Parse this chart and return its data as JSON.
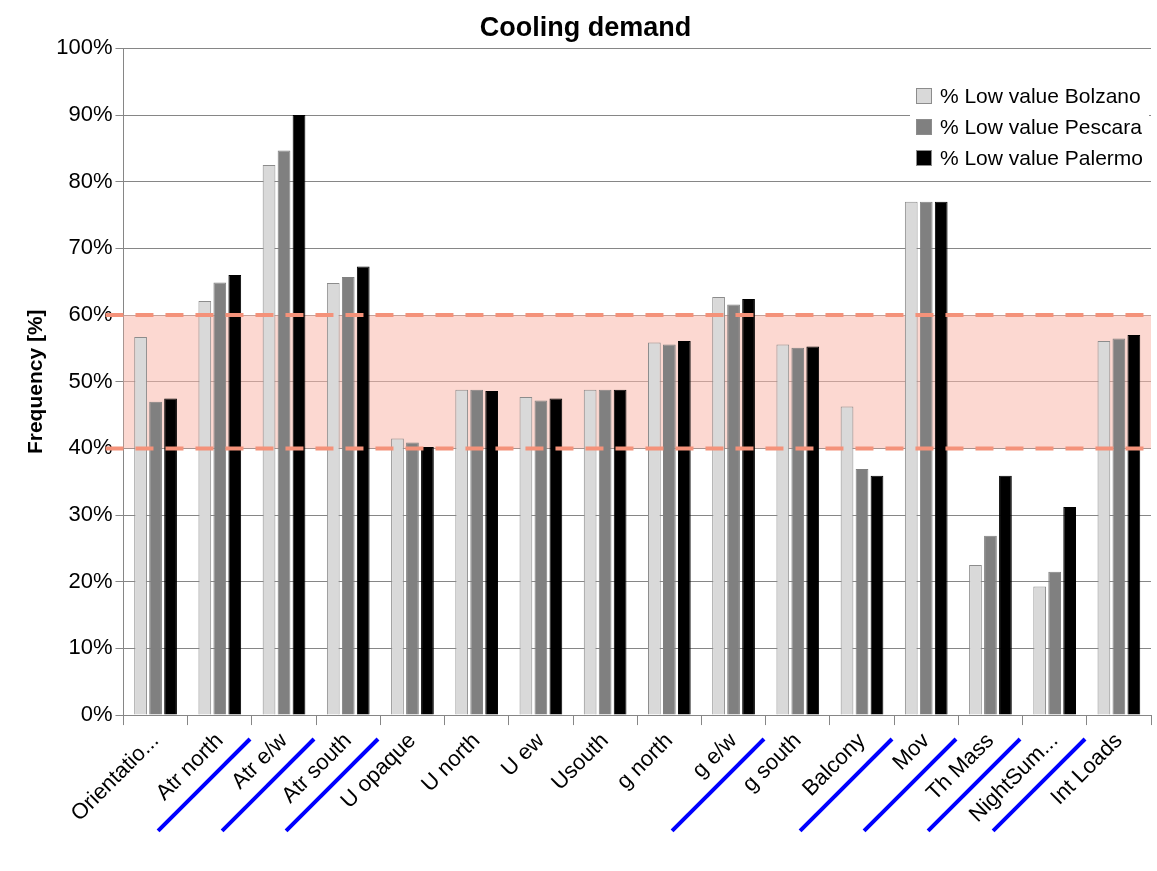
{
  "chart_data": {
    "type": "bar",
    "title": "Cooling demand",
    "ylabel": "Frequency [%]",
    "categories": [
      "Orientatio...",
      "Atr north",
      "Atr e/w",
      "Atr south",
      "U opaque",
      "U north",
      "U ew",
      "Usouth",
      "g north",
      "g e/w",
      "g south",
      "Balcony",
      "Mov",
      "Th Mass",
      "NightSum...",
      "Int Loads"
    ],
    "series": [
      {
        "name": "% Low value Bolzano",
        "color": "#d9d9d9",
        "values": [
          56.7,
          62.1,
          82.5,
          64.8,
          41.5,
          48.8,
          47.7,
          48.8,
          55.9,
          62.7,
          55.6,
          46.3,
          77,
          22.5,
          19.3,
          56.1
        ]
      },
      {
        "name": "% Low value Pescara",
        "color": "#808080",
        "values": [
          47.0,
          64.9,
          84.7,
          65.7,
          40.9,
          48.8,
          47.2,
          48.8,
          55.6,
          61.6,
          55.1,
          36.9,
          77,
          26.9,
          21.5,
          56.5
        ]
      },
      {
        "name": "% Low value Palermo",
        "color": "#000000",
        "values": [
          47.5,
          66.0,
          90.0,
          67.3,
          40.2,
          48.6,
          47.5,
          48.8,
          56.1,
          62.4,
          55.3,
          35.9,
          77,
          35.9,
          31.2,
          57.0
        ]
      }
    ],
    "ylim": [
      0,
      100
    ],
    "yticks": [
      {
        "value": 0,
        "label": "0%"
      },
      {
        "value": 10,
        "label": "10%"
      },
      {
        "value": 20,
        "label": "20%"
      },
      {
        "value": 30,
        "label": "30%"
      },
      {
        "value": 40,
        "label": "40%"
      },
      {
        "value": 50,
        "label": "50%"
      },
      {
        "value": 60,
        "label": "60%"
      },
      {
        "value": 70,
        "label": "70%"
      },
      {
        "value": 80,
        "label": "80%"
      },
      {
        "value": 90,
        "label": "90%"
      },
      {
        "value": 100,
        "label": "100%"
      }
    ],
    "grid": "y",
    "legend": "top right",
    "bands": [
      {
        "axis": "y",
        "from": 40,
        "to": 60,
        "color": "#f9b8ac"
      }
    ]
  }
}
